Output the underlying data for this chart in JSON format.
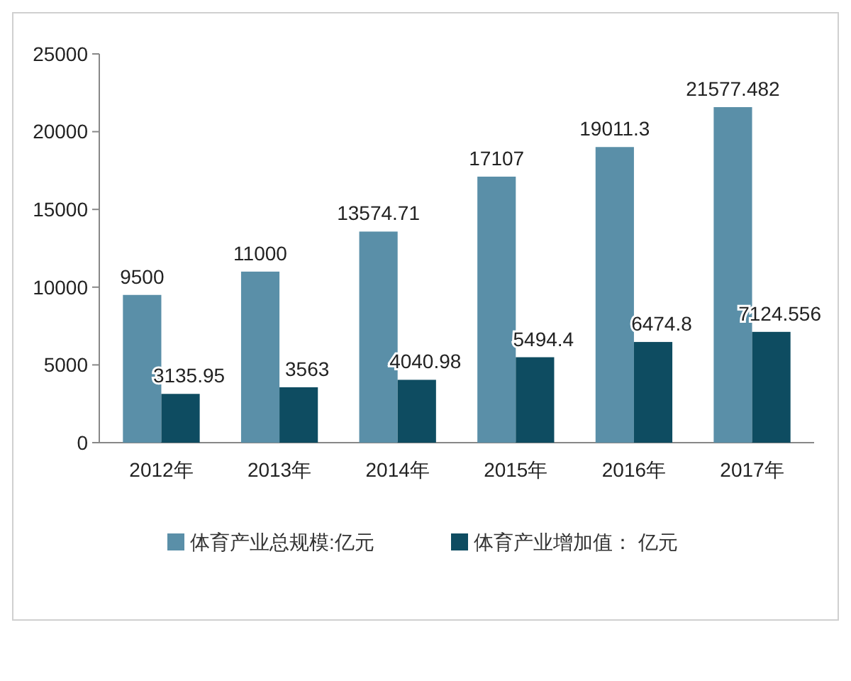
{
  "chart_data": {
    "type": "bar",
    "categories": [
      "2012年",
      "2013年",
      "2014年",
      "2015年",
      "2016年",
      "2017年"
    ],
    "series": [
      {
        "name": "体育产业总规模:亿元",
        "color": "#5a8fa8",
        "values": [
          9500,
          11000,
          13574.71,
          17107,
          19011.3,
          21577.482
        ]
      },
      {
        "name": "体育产业增加值： 亿元",
        "color": "#0e4c61",
        "values": [
          3135.95,
          3563,
          4040.98,
          5494.4,
          6474.8,
          7124.556
        ]
      }
    ],
    "ylim": [
      0,
      25000
    ],
    "yticks": [
      0,
      5000,
      10000,
      15000,
      20000,
      25000
    ],
    "data_labels": true,
    "legend": "bottom",
    "grid": false
  }
}
